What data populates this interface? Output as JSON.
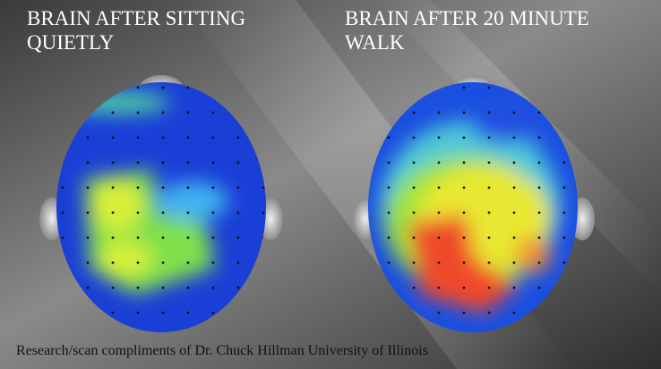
{
  "slide": {
    "panels": [
      {
        "title_lines": [
          "BRAIN AFTER SITTING",
          "QUIETLY"
        ]
      },
      {
        "title_lines": [
          "BRAIN AFTER 20 MINUTE",
          "WALK"
        ]
      }
    ],
    "caption": "Research/scan compliments of Dr. Chuck Hillman University of Illinois"
  }
}
